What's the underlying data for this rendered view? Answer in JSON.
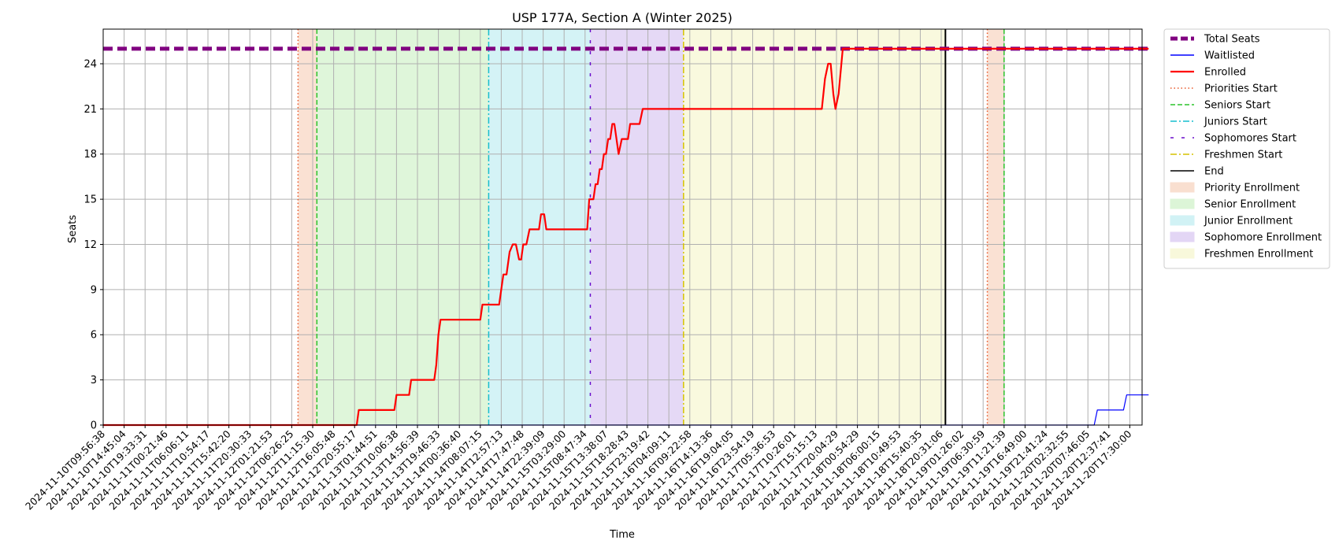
{
  "chart_data": {
    "type": "line",
    "title": "USP 177A, Section A (Winter 2025)",
    "xlabel": "Time",
    "ylabel": "Seats",
    "xlim": [
      "2024-11-10T09:56:38",
      "2024-11-20T19:00:00"
    ],
    "ylim": [
      0,
      26.3
    ],
    "grid": true,
    "legend_position": "outside-top-right",
    "x_tick_labels": [
      "2024-11-10T09:56:38",
      "2024-11-10T14:45:04",
      "2024-11-10T19:33:31",
      "2024-11-11T00:21:46",
      "2024-11-11T06:06:11",
      "2024-11-11T10:54:17",
      "2024-11-11T15:42:20",
      "2024-11-11T20:30:33",
      "2024-11-12T01:21:53",
      "2024-11-12T06:26:25",
      "2024-11-12T11:15:30",
      "2024-11-12T16:05:48",
      "2024-11-12T20:55:17",
      "2024-11-13T01:44:51",
      "2024-11-13T10:06:38",
      "2024-11-13T14:56:39",
      "2024-11-13T19:46:33",
      "2024-11-14T00:36:40",
      "2024-11-14T08:07:15",
      "2024-11-14T12:57:13",
      "2024-11-14T17:47:48",
      "2024-11-14T22:39:09",
      "2024-11-15T03:29:00",
      "2024-11-15T08:47:34",
      "2024-11-15T13:38:07",
      "2024-11-15T18:28:43",
      "2024-11-15T23:19:42",
      "2024-11-16T04:09:11",
      "2024-11-16T09:22:58",
      "2024-11-16T14:13:36",
      "2024-11-16T19:04:05",
      "2024-11-16T23:54:19",
      "2024-11-17T05:36:53",
      "2024-11-17T10:26:01",
      "2024-11-17T15:15:13",
      "2024-11-17T20:04:29",
      "2024-11-18T00:54:29",
      "2024-11-18T06:00:15",
      "2024-11-18T10:49:53",
      "2024-11-18T15:40:35",
      "2024-11-18T20:31:06",
      "2024-11-19T01:26:02",
      "2024-11-19T06:30:59",
      "2024-11-19T11:21:39",
      "2024-11-19T16:49:00",
      "2024-11-19T21:41:24",
      "2024-11-20T02:32:55",
      "2024-11-20T07:46:05",
      "2024-11-20T12:37:41",
      "2024-11-20T17:30:00"
    ],
    "y_ticks": [
      0,
      3,
      6,
      9,
      12,
      15,
      18,
      21,
      24
    ],
    "series": [
      {
        "name": "Total Seats",
        "color": "#800080",
        "style": "dashed-thick",
        "points": [
          [
            0,
            25
          ],
          [
            49.9,
            25
          ]
        ]
      },
      {
        "name": "Waitlisted",
        "color": "#0000ff",
        "style": "solid-thin",
        "points": [
          [
            0,
            0
          ],
          [
            47.3,
            0
          ],
          [
            47.45,
            1
          ],
          [
            48.7,
            1
          ],
          [
            48.85,
            2
          ],
          [
            49.9,
            2
          ]
        ]
      },
      {
        "name": "Enrolled",
        "color": "#ff0000",
        "style": "solid-thick",
        "points": [
          [
            0,
            0
          ],
          [
            12.1,
            0
          ],
          [
            12.2,
            1
          ],
          [
            13.9,
            1
          ],
          [
            14.0,
            2
          ],
          [
            14.6,
            2
          ],
          [
            14.7,
            3
          ],
          [
            15.8,
            3
          ],
          [
            15.9,
            4
          ],
          [
            16.0,
            6
          ],
          [
            16.1,
            7
          ],
          [
            18.0,
            7
          ],
          [
            18.1,
            8
          ],
          [
            18.9,
            8
          ],
          [
            19.1,
            10
          ],
          [
            19.25,
            10
          ],
          [
            19.4,
            11.5
          ],
          [
            19.55,
            12
          ],
          [
            19.7,
            12
          ],
          [
            19.85,
            11
          ],
          [
            19.95,
            11
          ],
          [
            20.05,
            12
          ],
          [
            20.2,
            12
          ],
          [
            20.35,
            13
          ],
          [
            20.8,
            13
          ],
          [
            20.9,
            14
          ],
          [
            21.05,
            14
          ],
          [
            21.15,
            13
          ],
          [
            23.1,
            13
          ],
          [
            23.2,
            15
          ],
          [
            23.4,
            15
          ],
          [
            23.5,
            16
          ],
          [
            23.6,
            16
          ],
          [
            23.7,
            17
          ],
          [
            23.8,
            17
          ],
          [
            23.9,
            18
          ],
          [
            24.0,
            18
          ],
          [
            24.1,
            19
          ],
          [
            24.2,
            19
          ],
          [
            24.3,
            20
          ],
          [
            24.4,
            20
          ],
          [
            24.6,
            18
          ],
          [
            24.75,
            19
          ],
          [
            25.05,
            19
          ],
          [
            25.15,
            20
          ],
          [
            25.6,
            20
          ],
          [
            25.75,
            21
          ],
          [
            34.3,
            21
          ],
          [
            34.45,
            23
          ],
          [
            34.6,
            24
          ],
          [
            34.72,
            24
          ],
          [
            34.85,
            22
          ],
          [
            34.95,
            21
          ],
          [
            35.1,
            22
          ],
          [
            35.3,
            25
          ],
          [
            49.9,
            25
          ]
        ]
      }
    ],
    "vertical_lines": [
      {
        "name": "Priorities Start",
        "x": 9.3,
        "color": "#e8582a",
        "style": "dotted"
      },
      {
        "name": "Seniors Start",
        "x": 10.2,
        "color": "#2bc42b",
        "style": "dashed"
      },
      {
        "name": "Juniors Start",
        "x": 18.4,
        "color": "#17becf",
        "style": "dashdot"
      },
      {
        "name": "Sophomores Start",
        "x": 23.25,
        "color": "#6a0dcc",
        "style": "loosedash"
      },
      {
        "name": "Freshmen Start",
        "x": 27.7,
        "color": "#d6c200",
        "style": "dashdot"
      },
      {
        "name": "End",
        "x": 40.2,
        "color": "#000000",
        "style": "solid"
      },
      {
        "name": "Priorities Start",
        "x": 42.2,
        "color": "#e8582a",
        "style": "dotted",
        "legend": false
      },
      {
        "name": "Seniors Start",
        "x": 43.0,
        "color": "#2bc42b",
        "style": "dashed",
        "legend": false
      }
    ],
    "spans": [
      {
        "name": "Priority Enrollment",
        "from": 9.3,
        "to": 10.2,
        "color": "#f9dccb"
      },
      {
        "name": "Senior Enrollment",
        "from": 10.2,
        "to": 18.4,
        "color": "#d9f5d3"
      },
      {
        "name": "Junior Enrollment",
        "from": 18.4,
        "to": 23.25,
        "color": "#cdf1f4"
      },
      {
        "name": "Sophomore Enrollment",
        "from": 23.25,
        "to": 27.7,
        "color": "#e0d2f4"
      },
      {
        "name": "Freshmen Enrollment",
        "from": 27.7,
        "to": 40.2,
        "color": "#f8f8d8"
      },
      {
        "name": "Priority Enrollment",
        "from": 42.2,
        "to": 43.0,
        "color": "#f9dccb",
        "legend": false
      }
    ]
  }
}
